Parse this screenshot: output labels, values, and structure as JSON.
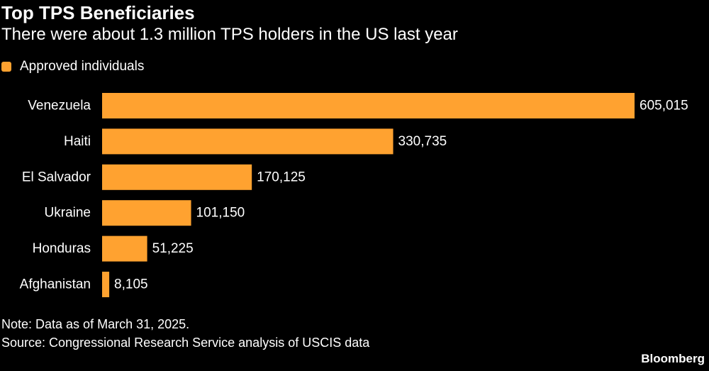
{
  "title": "Top TPS Beneficiaries",
  "subtitle": "There were about 1.3 million TPS holders in the US last year",
  "note": "Note: Data as of March 31, 2025.",
  "source": "Source: Congressional Research Service analysis of USCIS data",
  "brand": "Bloomberg",
  "colors": {
    "background": "#000000",
    "bar": "#ffa230",
    "text": "#ffffff"
  },
  "chart_data": {
    "type": "bar",
    "orientation": "horizontal",
    "categories": [
      "Venezuela",
      "Haiti",
      "El Salvador",
      "Ukraine",
      "Honduras",
      "Afghanistan"
    ],
    "series": [
      {
        "name": "Approved individuals",
        "values": [
          605015,
          330735,
          170125,
          101150,
          51225,
          8105
        ],
        "labels": [
          "605,015",
          "330,735",
          "170,125",
          "101,150",
          "51,225",
          "8,105"
        ]
      }
    ],
    "xlim": [
      0,
      605015
    ],
    "legend_position": "top-left",
    "grid": false
  }
}
